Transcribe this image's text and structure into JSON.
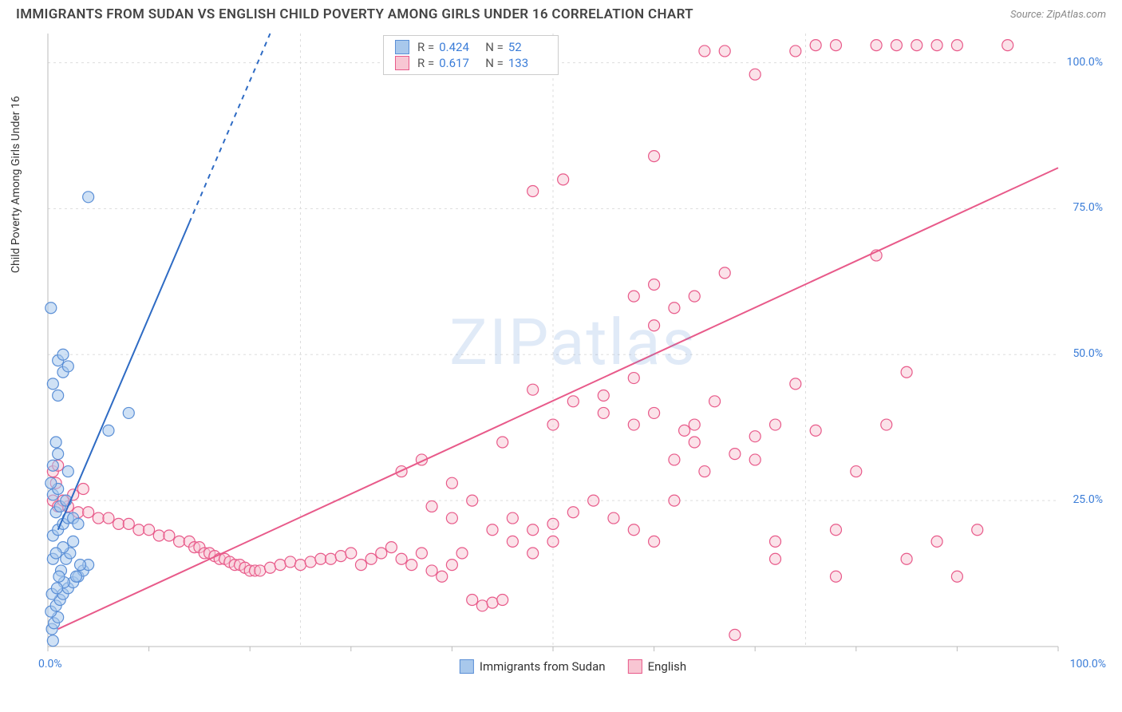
{
  "header": {
    "title": "IMMIGRANTS FROM SUDAN VS ENGLISH CHILD POVERTY AMONG GIRLS UNDER 16 CORRELATION CHART",
    "source_prefix": "Source: ",
    "source_name": "ZipAtlas.com"
  },
  "watermark": "ZIPatlas",
  "chart": {
    "type": "scatter",
    "y_axis_label": "Child Poverty Among Girls Under 16",
    "xlim": [
      0,
      100
    ],
    "ylim": [
      0,
      105
    ],
    "y_ticks": [
      25.0,
      50.0,
      75.0,
      100.0
    ],
    "y_tick_labels": [
      "25.0%",
      "50.0%",
      "75.0%",
      "100.0%"
    ],
    "x_tick_labels": [
      "0.0%",
      "100.0%"
    ],
    "grid_color": "#dddddd",
    "axis_color": "#bbbbbb",
    "background_color": "#ffffff",
    "marker_radius": 7,
    "marker_stroke_width": 1.2,
    "series": {
      "blue": {
        "label": "Immigrants from Sudan",
        "fill": "#a8c8ec",
        "stroke": "#5b8fd6",
        "fill_opacity": 0.55,
        "R": "0.424",
        "N": "52",
        "trend": {
          "x1": 1,
          "y1": 20,
          "x2": 22,
          "y2": 105,
          "solid_until_x": 14,
          "color": "#2e6bc4",
          "width": 2
        },
        "points": [
          [
            0.5,
            1
          ],
          [
            0.4,
            3
          ],
          [
            0.6,
            4
          ],
          [
            1,
            5
          ],
          [
            0.3,
            6
          ],
          [
            0.8,
            7
          ],
          [
            1.2,
            8
          ],
          [
            1.5,
            9
          ],
          [
            2,
            10
          ],
          [
            2.5,
            11
          ],
          [
            3,
            12
          ],
          [
            3.5,
            13
          ],
          [
            4,
            14
          ],
          [
            3.2,
            14
          ],
          [
            2.8,
            12
          ],
          [
            1.8,
            15
          ],
          [
            2.2,
            16
          ],
          [
            1.5,
            17
          ],
          [
            2.5,
            18
          ],
          [
            0.5,
            19
          ],
          [
            1,
            20
          ],
          [
            1.5,
            21
          ],
          [
            2,
            22
          ],
          [
            2.5,
            22
          ],
          [
            3,
            21
          ],
          [
            0.8,
            23
          ],
          [
            1.2,
            24
          ],
          [
            1.8,
            25
          ],
          [
            0.5,
            26
          ],
          [
            1,
            27
          ],
          [
            0.3,
            28
          ],
          [
            2,
            30
          ],
          [
            0.5,
            31
          ],
          [
            1,
            33
          ],
          [
            0.8,
            35
          ],
          [
            6,
            37
          ],
          [
            8,
            40
          ],
          [
            1,
            43
          ],
          [
            0.5,
            45
          ],
          [
            1.5,
            47
          ],
          [
            2,
            48
          ],
          [
            1,
            49
          ],
          [
            1.5,
            50
          ],
          [
            0.3,
            58
          ],
          [
            4,
            77
          ],
          [
            0.5,
            15
          ],
          [
            0.8,
            16
          ],
          [
            1.3,
            13
          ],
          [
            1.6,
            11
          ],
          [
            0.4,
            9
          ],
          [
            0.9,
            10
          ],
          [
            1.1,
            12
          ]
        ]
      },
      "pink": {
        "label": "English",
        "fill": "#f8c6d3",
        "stroke": "#e85a8a",
        "fill_opacity": 0.5,
        "R": "0.617",
        "N": "133",
        "trend": {
          "x1": 1,
          "y1": 3,
          "x2": 100,
          "y2": 82,
          "color": "#e85a8a",
          "width": 2
        },
        "points": [
          [
            0.5,
            25
          ],
          [
            1,
            24
          ],
          [
            2,
            24
          ],
          [
            3,
            23
          ],
          [
            4,
            23
          ],
          [
            5,
            22
          ],
          [
            6,
            22
          ],
          [
            7,
            21
          ],
          [
            8,
            21
          ],
          [
            9,
            20
          ],
          [
            10,
            20
          ],
          [
            11,
            19
          ],
          [
            12,
            19
          ],
          [
            13,
            18
          ],
          [
            14,
            18
          ],
          [
            14.5,
            17
          ],
          [
            15,
            17
          ],
          [
            15.5,
            16
          ],
          [
            16,
            16
          ],
          [
            16.5,
            15.5
          ],
          [
            17,
            15
          ],
          [
            17.5,
            15
          ],
          [
            18,
            14.5
          ],
          [
            18.5,
            14
          ],
          [
            19,
            14
          ],
          [
            19.5,
            13.5
          ],
          [
            20,
            13
          ],
          [
            20.5,
            13
          ],
          [
            21,
            13
          ],
          [
            22,
            13.5
          ],
          [
            23,
            14
          ],
          [
            24,
            14.5
          ],
          [
            25,
            14
          ],
          [
            26,
            14.5
          ],
          [
            27,
            15
          ],
          [
            28,
            15
          ],
          [
            29,
            15.5
          ],
          [
            30,
            16
          ],
          [
            31,
            14
          ],
          [
            32,
            15
          ],
          [
            33,
            16
          ],
          [
            34,
            17
          ],
          [
            35,
            15
          ],
          [
            36,
            14
          ],
          [
            37,
            16
          ],
          [
            38,
            13
          ],
          [
            39,
            12
          ],
          [
            40,
            14
          ],
          [
            41,
            16
          ],
          [
            42,
            8
          ],
          [
            43,
            7
          ],
          [
            44,
            7.5
          ],
          [
            45,
            8
          ],
          [
            38,
            24
          ],
          [
            40,
            22
          ],
          [
            42,
            25
          ],
          [
            44,
            20
          ],
          [
            46,
            22
          ],
          [
            48,
            20
          ],
          [
            50,
            21
          ],
          [
            52,
            23
          ],
          [
            54,
            25
          ],
          [
            56,
            22
          ],
          [
            58,
            20
          ],
          [
            60,
            18
          ],
          [
            35,
            30
          ],
          [
            37,
            32
          ],
          [
            40,
            28
          ],
          [
            45,
            35
          ],
          [
            48,
            44
          ],
          [
            50,
            38
          ],
          [
            52,
            42
          ],
          [
            55,
            40
          ],
          [
            58,
            38
          ],
          [
            60,
            40
          ],
          [
            62,
            32
          ],
          [
            64,
            35
          ],
          [
            66,
            42
          ],
          [
            68,
            33
          ],
          [
            70,
            36
          ],
          [
            72,
            15
          ],
          [
            58,
            60
          ],
          [
            60,
            62
          ],
          [
            60,
            84
          ],
          [
            62,
            25
          ],
          [
            63,
            37
          ],
          [
            64,
            38
          ],
          [
            65,
            30
          ],
          [
            67,
            64
          ],
          [
            70,
            32
          ],
          [
            72,
            38
          ],
          [
            74,
            45
          ],
          [
            76,
            37
          ],
          [
            78,
            20
          ],
          [
            80,
            30
          ],
          [
            82,
            67
          ],
          [
            85,
            47
          ],
          [
            88,
            18
          ],
          [
            90,
            12
          ],
          [
            92,
            20
          ],
          [
            48,
            78
          ],
          [
            51,
            80
          ],
          [
            55,
            43
          ],
          [
            58,
            46
          ],
          [
            72,
            18
          ],
          [
            83,
            38
          ],
          [
            70,
            98
          ],
          [
            74,
            102
          ],
          [
            76,
            103
          ],
          [
            78,
            103
          ],
          [
            82,
            103
          ],
          [
            84,
            103
          ],
          [
            86,
            103
          ],
          [
            88,
            103
          ],
          [
            90,
            103
          ],
          [
            95,
            103
          ],
          [
            65,
            102
          ],
          [
            67,
            102
          ],
          [
            60,
            55
          ],
          [
            62,
            58
          ],
          [
            64,
            60
          ],
          [
            1.5,
            25
          ],
          [
            2.5,
            26
          ],
          [
            3.5,
            27
          ],
          [
            0.5,
            30
          ],
          [
            1,
            31
          ],
          [
            0.8,
            28
          ],
          [
            68,
            2
          ],
          [
            78,
            12
          ],
          [
            85,
            15
          ],
          [
            50,
            18
          ],
          [
            48,
            16
          ],
          [
            46,
            18
          ]
        ]
      }
    }
  },
  "legend_stats": {
    "r_label": "R =",
    "n_label": "N ="
  }
}
